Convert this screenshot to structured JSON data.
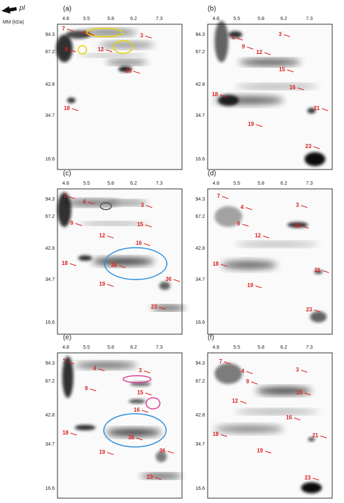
{
  "header": {
    "pi_label": "pI",
    "mm_label": "MM (kDa)"
  },
  "panels": [
    {
      "label": "(a)",
      "pi_ticks": [
        "4.8",
        "5.5",
        "5.8",
        "6.2",
        "7.3"
      ],
      "mm_ticks": [
        "94.3",
        "67.2",
        "42.8",
        "34.7",
        "16.6"
      ],
      "spots": [
        "7",
        "4",
        "3",
        "9",
        "12",
        "15",
        "18"
      ]
    },
    {
      "label": "(b)",
      "pi_ticks": [
        "4.8",
        "5.5",
        "5.8",
        "6.2",
        "7.3"
      ],
      "mm_ticks": [
        "94.3",
        "67.2",
        "42.8",
        "34.7",
        "16.6"
      ],
      "spots": [
        "3",
        "4",
        "9",
        "12",
        "15",
        "16",
        "18",
        "19",
        "21",
        "23"
      ]
    },
    {
      "label": "(c)",
      "pi_ticks": [
        "4.8",
        "5.5",
        "5.8",
        "6.2",
        "7.3"
      ],
      "mm_ticks": [
        "94.3",
        "67.2",
        "42.8",
        "34.7",
        "16.6"
      ],
      "spots": [
        "7",
        "4",
        "3",
        "9",
        "12",
        "15",
        "16",
        "18",
        "19",
        "38",
        "36",
        "23"
      ]
    },
    {
      "label": "(d)",
      "pi_ticks": [
        "4.8",
        "5.5",
        "5.8",
        "6.2",
        "7.3"
      ],
      "mm_ticks": [
        "94.3",
        "67.2",
        "42.8",
        "34.7",
        "16.6"
      ],
      "spots": [
        "7",
        "4",
        "3",
        "9",
        "12",
        "15",
        "18",
        "19",
        "21",
        "23"
      ]
    },
    {
      "label": "(e)",
      "pi_ticks": [
        "4.8",
        "5.5",
        "5.8",
        "6.2",
        "7.3"
      ],
      "mm_ticks": [
        "94.3",
        "67.2",
        "42.8",
        "34.7",
        "16.6"
      ],
      "spots": [
        "7",
        "4",
        "3",
        "9",
        "15",
        "16",
        "18",
        "19",
        "38",
        "36",
        "23"
      ]
    },
    {
      "label": "(f)",
      "pi_ticks": [
        "4.8",
        "5.5",
        "5.8",
        "6.2",
        "7.3"
      ],
      "mm_ticks": [
        "94.3",
        "67.2",
        "42.8",
        "34.7",
        "16.6"
      ],
      "spots": [
        "7",
        "4",
        "3",
        "9",
        "12",
        "15",
        "16",
        "18",
        "19",
        "21",
        "23"
      ]
    }
  ]
}
